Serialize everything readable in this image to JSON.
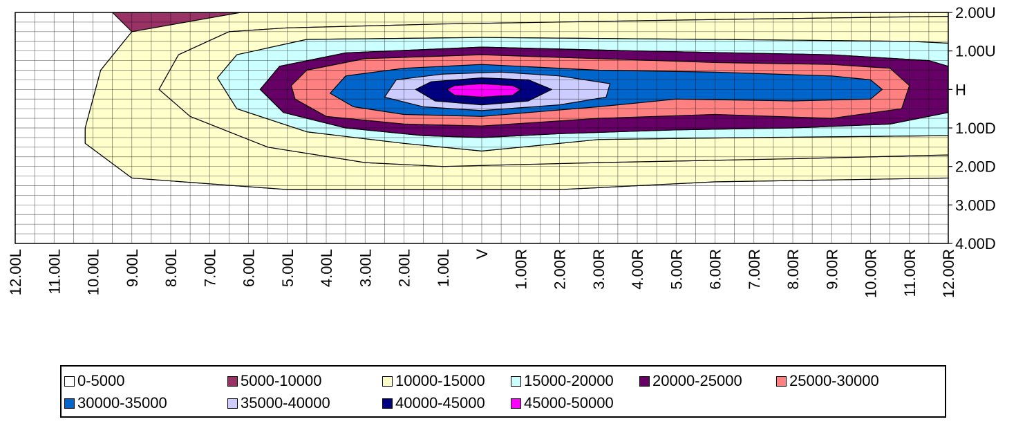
{
  "chart_data": {
    "type": "contour",
    "title": "",
    "xlabel": "",
    "ylabel": "",
    "x_ticks": [
      "12.00L",
      "11.00L",
      "10.00L",
      "9.00L",
      "8.00L",
      "7.00L",
      "6.00L",
      "5.00L",
      "4.00L",
      "3.00L",
      "2.00L",
      "1.00L",
      "V",
      "1.00R",
      "2.00R",
      "3.00R",
      "4.00R",
      "5.00R",
      "6.00R",
      "7.00R",
      "8.00R",
      "9.00R",
      "10.00R",
      "11.00R",
      "12.00R"
    ],
    "y_ticks": [
      "2.00U",
      "1.00U",
      "H",
      "1.00D",
      "2.00D",
      "3.00D",
      "4.00D"
    ],
    "x_range": [
      -12,
      12
    ],
    "y_range": [
      -4,
      2
    ],
    "grid": true,
    "legend_position": "bottom",
    "bands": [
      {
        "name": "0-5000",
        "color": "#ffffff"
      },
      {
        "name": "5000-10000",
        "color": "#993366"
      },
      {
        "name": "10000-15000",
        "color": "#ffffcc"
      },
      {
        "name": "15000-20000",
        "color": "#ccffff"
      },
      {
        "name": "20000-25000",
        "color": "#660066"
      },
      {
        "name": "25000-30000",
        "color": "#ff8080"
      },
      {
        "name": "30000-35000",
        "color": "#0066cc"
      },
      {
        "name": "35000-40000",
        "color": "#ccccff"
      },
      {
        "name": "40000-45000",
        "color": "#000080"
      },
      {
        "name": "45000-50000",
        "color": "#ff00ff"
      }
    ],
    "contours": [
      {
        "band": 1,
        "points": [
          [
            -9.5,
            2
          ],
          [
            12,
            2
          ],
          [
            12,
            -2.3
          ],
          [
            6,
            -2.4
          ],
          [
            2,
            -2.6
          ],
          [
            -5,
            -2.6
          ],
          [
            -9,
            -2.3
          ],
          [
            -10.2,
            -1.4
          ],
          [
            -10.2,
            -1.0
          ],
          [
            -9.8,
            0.5
          ],
          [
            -9,
            1.5
          ]
        ]
      },
      {
        "band": 2,
        "points": [
          [
            -6.2,
            2
          ],
          [
            12,
            2
          ],
          [
            12,
            1.9
          ],
          [
            5,
            1.8
          ],
          [
            -1,
            1.7
          ],
          [
            -5,
            1.6
          ],
          [
            -6.5,
            1.5
          ],
          [
            -7.8,
            0.9
          ],
          [
            -8.3,
            0.0
          ],
          [
            -7.5,
            -0.7
          ],
          [
            -5.5,
            -1.5
          ],
          [
            -3,
            -1.9
          ],
          [
            -1,
            -2.0
          ],
          [
            3,
            -1.9
          ],
          [
            8,
            -1.8
          ],
          [
            12,
            -1.7
          ],
          [
            12,
            -2.3
          ],
          [
            6,
            -2.4
          ],
          [
            2,
            -2.6
          ],
          [
            -5,
            -2.6
          ],
          [
            -9,
            -2.3
          ],
          [
            -10.2,
            -1.4
          ],
          [
            -10.2,
            -1.0
          ],
          [
            -9.8,
            0.5
          ],
          [
            -9,
            1.5
          ]
        ]
      },
      {
        "band": 2,
        "points": [
          [
            -6.5,
            1.5
          ],
          [
            -5,
            1.6
          ],
          [
            -1,
            1.7
          ],
          [
            5,
            1.8
          ],
          [
            12,
            1.9
          ],
          [
            12,
            1.2
          ],
          [
            11,
            1.25
          ],
          [
            6,
            1.3
          ],
          [
            0,
            1.35
          ],
          [
            -4.5,
            1.3
          ],
          [
            -6.3,
            0.9
          ],
          [
            -6.8,
            0.3
          ],
          [
            -6.3,
            -0.5
          ],
          [
            -4.5,
            -1.1
          ],
          [
            -2,
            -1.4
          ],
          [
            0,
            -1.6
          ],
          [
            3,
            -1.3
          ],
          [
            7,
            -1.25
          ],
          [
            12,
            -1.2
          ],
          [
            12,
            -1.7
          ],
          [
            8,
            -1.8
          ],
          [
            3,
            -1.9
          ],
          [
            -1,
            -2.0
          ],
          [
            -3,
            -1.9
          ],
          [
            -5.5,
            -1.5
          ],
          [
            -7.5,
            -0.7
          ],
          [
            -8.3,
            0.0
          ],
          [
            -7.8,
            0.9
          ]
        ]
      },
      {
        "band": 3,
        "points": [
          [
            -4.5,
            1.3
          ],
          [
            0,
            1.35
          ],
          [
            6,
            1.3
          ],
          [
            11,
            1.25
          ],
          [
            12,
            1.2
          ],
          [
            12,
            0.6
          ],
          [
            11.5,
            0.75
          ],
          [
            9,
            0.9
          ],
          [
            4,
            1.0
          ],
          [
            0,
            1.1
          ],
          [
            -3.5,
            0.95
          ],
          [
            -5.2,
            0.6
          ],
          [
            -5.7,
            0.0
          ],
          [
            -5.1,
            -0.6
          ],
          [
            -3.5,
            -1.0
          ],
          [
            -1.5,
            -1.2
          ],
          [
            0,
            -1.25
          ],
          [
            2,
            -1.15
          ],
          [
            5,
            -1.05
          ],
          [
            8,
            -1.0
          ],
          [
            10.5,
            -0.9
          ],
          [
            12,
            -0.6
          ],
          [
            12,
            -1.2
          ],
          [
            7,
            -1.25
          ],
          [
            3,
            -1.3
          ],
          [
            0,
            -1.6
          ],
          [
            -2,
            -1.4
          ],
          [
            -4.5,
            -1.1
          ],
          [
            -6.3,
            -0.5
          ],
          [
            -6.8,
            0.3
          ],
          [
            -6.3,
            0.9
          ]
        ]
      },
      {
        "band": 4,
        "points": [
          [
            -5.2,
            0.6
          ],
          [
            -3.5,
            0.95
          ],
          [
            0,
            1.1
          ],
          [
            4,
            1.0
          ],
          [
            9,
            0.9
          ],
          [
            11.5,
            0.75
          ],
          [
            12,
            0.6
          ],
          [
            12,
            -0.6
          ],
          [
            10.5,
            -0.9
          ],
          [
            8,
            -1.0
          ],
          [
            5,
            -1.05
          ],
          [
            2,
            -1.15
          ],
          [
            0,
            -1.25
          ],
          [
            -1.5,
            -1.2
          ],
          [
            -3.5,
            -1.0
          ],
          [
            -5.1,
            -0.6
          ],
          [
            -5.7,
            0.0
          ]
        ]
      },
      {
        "band": 5,
        "points": [
          [
            -4.5,
            0.5
          ],
          [
            -3,
            0.8
          ],
          [
            0,
            0.9
          ],
          [
            3,
            0.8
          ],
          [
            6,
            0.7
          ],
          [
            9,
            0.65
          ],
          [
            10.5,
            0.55
          ],
          [
            11,
            0.1
          ],
          [
            10.8,
            -0.5
          ],
          [
            9,
            -0.75
          ],
          [
            6,
            -0.65
          ],
          [
            3,
            -0.75
          ],
          [
            0,
            -0.95
          ],
          [
            -2,
            -0.9
          ],
          [
            -4,
            -0.7
          ],
          [
            -4.8,
            -0.25
          ],
          [
            -4.9,
            0.1
          ]
        ]
      },
      {
        "band": 6,
        "points": [
          [
            -3.5,
            0.35
          ],
          [
            -2,
            0.55
          ],
          [
            0,
            0.65
          ],
          [
            3,
            0.5
          ],
          [
            6,
            0.45
          ],
          [
            9,
            0.35
          ],
          [
            10,
            0.25
          ],
          [
            10.3,
            0.0
          ],
          [
            10,
            -0.25
          ],
          [
            8,
            -0.3
          ],
          [
            5,
            -0.25
          ],
          [
            3,
            -0.45
          ],
          [
            0,
            -0.7
          ],
          [
            -2,
            -0.65
          ],
          [
            -3.3,
            -0.45
          ],
          [
            -3.9,
            -0.1
          ]
        ]
      },
      {
        "band": 7,
        "points": [
          [
            -2.2,
            0.25
          ],
          [
            -1,
            0.4
          ],
          [
            0.5,
            0.45
          ],
          [
            2,
            0.35
          ],
          [
            3.3,
            0.15
          ],
          [
            3.2,
            -0.2
          ],
          [
            2,
            -0.4
          ],
          [
            0,
            -0.55
          ],
          [
            -1.5,
            -0.45
          ],
          [
            -2.5,
            -0.2
          ]
        ]
      },
      {
        "band": 8,
        "points": [
          [
            -1.3,
            0.2
          ],
          [
            0,
            0.3
          ],
          [
            1.2,
            0.25
          ],
          [
            1.8,
            0.0
          ],
          [
            1.2,
            -0.3
          ],
          [
            0,
            -0.4
          ],
          [
            -1.2,
            -0.3
          ],
          [
            -1.7,
            0.0
          ]
        ]
      },
      {
        "band": 9,
        "points": [
          [
            -0.7,
            0.1
          ],
          [
            0,
            0.15
          ],
          [
            0.8,
            0.1
          ],
          [
            1.0,
            0.0
          ],
          [
            0.8,
            -0.15
          ],
          [
            0,
            -0.2
          ],
          [
            -0.7,
            -0.15
          ],
          [
            -0.9,
            0.0
          ]
        ]
      }
    ]
  }
}
